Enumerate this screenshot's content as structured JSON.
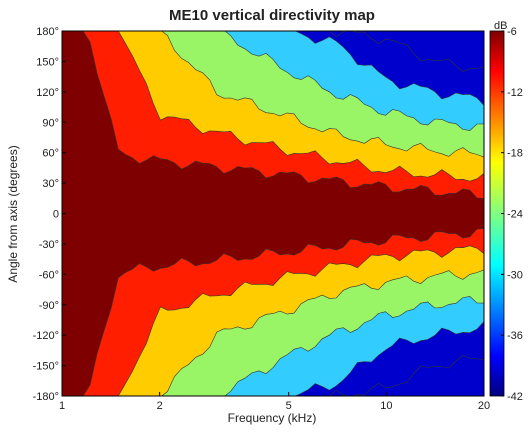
{
  "chart_data": {
    "type": "heatmap",
    "title": "ME10 vertical directivity map",
    "xlabel": "Frequency (kHz)",
    "ylabel": "Angle from axis (degrees)",
    "x_scale": "log",
    "xlim": [
      1,
      20
    ],
    "ylim": [
      -180,
      180
    ],
    "x_ticks": [
      {
        "value": 1,
        "label": "1"
      },
      {
        "value": 2,
        "label": "2"
      },
      {
        "value": 5,
        "label": "5"
      },
      {
        "value": 10,
        "label": "10"
      },
      {
        "value": 20,
        "label": "20"
      }
    ],
    "y_ticks": [
      {
        "value": 180,
        "label": "180°"
      },
      {
        "value": 150,
        "label": "150°"
      },
      {
        "value": 120,
        "label": "120°"
      },
      {
        "value": 90,
        "label": "90°"
      },
      {
        "value": 60,
        "label": "60°"
      },
      {
        "value": 30,
        "label": "30°"
      },
      {
        "value": 0,
        "label": "0"
      },
      {
        "value": -30,
        "label": "-30°"
      },
      {
        "value": -60,
        "label": "-60°"
      },
      {
        "value": -90,
        "label": "-90°"
      },
      {
        "value": -120,
        "label": "-120°"
      },
      {
        "value": -150,
        "label": "-150°"
      },
      {
        "value": -180,
        "label": "-180°"
      }
    ],
    "colorbar": {
      "unit": "dB",
      "range": [
        -42,
        -6
      ],
      "ticks": [
        {
          "value": -6,
          "label": "-6"
        },
        {
          "value": -12,
          "label": "-12"
        },
        {
          "value": -18,
          "label": "-18"
        },
        {
          "value": -24,
          "label": "-24"
        },
        {
          "value": -30,
          "label": "-30"
        },
        {
          "value": -36,
          "label": "-36"
        },
        {
          "value": -42,
          "label": "-42"
        }
      ]
    },
    "contour_levels": [
      {
        "level": -6,
        "color": "#7f0000"
      },
      {
        "level": -12,
        "color": "#ff1e00"
      },
      {
        "level": -18,
        "color": "#ffcc00"
      },
      {
        "level": -24,
        "color": "#99f566"
      },
      {
        "level": -30,
        "color": "#33ccff"
      },
      {
        "level": -36,
        "color": "#0000cc"
      }
    ],
    "contour_boundaries_deg": {
      "frequency_khz": [
        1,
        1.2,
        1.5,
        2,
        3,
        5,
        7,
        10,
        14,
        20
      ],
      "above_minus_6": [
        180,
        180,
        58,
        52,
        46,
        38,
        32,
        26,
        22,
        18
      ],
      "above_minus_12": [
        180,
        180,
        180,
        98,
        80,
        62,
        52,
        42,
        38,
        34
      ],
      "above_minus_18": [
        180,
        180,
        180,
        180,
        120,
        95,
        78,
        68,
        62,
        58
      ],
      "above_minus_24": [
        180,
        180,
        180,
        180,
        180,
        140,
        118,
        100,
        90,
        85
      ],
      "above_minus_30": [
        180,
        180,
        180,
        180,
        180,
        180,
        168,
        132,
        120,
        112
      ],
      "above_minus_36": [
        180,
        180,
        180,
        180,
        180,
        180,
        180,
        172,
        150,
        142
      ]
    },
    "grid": false
  }
}
